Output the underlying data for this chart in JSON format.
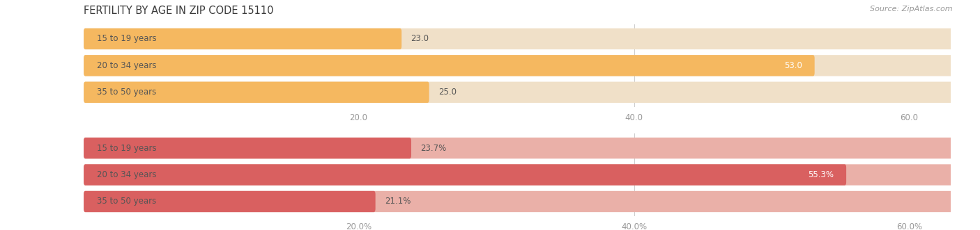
{
  "title": "FERTILITY BY AGE IN ZIP CODE 15110",
  "source": "Source: ZipAtlas.com",
  "top_chart": {
    "categories": [
      "15 to 19 years",
      "20 to 34 years",
      "35 to 50 years"
    ],
    "values": [
      23.0,
      53.0,
      25.0
    ],
    "labels": [
      "23.0",
      "53.0",
      "25.0"
    ],
    "bar_color": "#F5B860",
    "bg_bar_color": "#F0E0C8",
    "xlim": [
      0,
      63
    ],
    "xticks": [
      20.0,
      40.0,
      60.0
    ],
    "show_percent": false
  },
  "bottom_chart": {
    "categories": [
      "15 to 19 years",
      "20 to 34 years",
      "35 to 50 years"
    ],
    "values": [
      23.7,
      55.3,
      21.1
    ],
    "labels": [
      "23.7%",
      "55.3%",
      "21.1%"
    ],
    "bar_color": "#D96060",
    "bg_bar_color": "#EAB0A8",
    "xlim": [
      0,
      63
    ],
    "xticks": [
      20.0,
      40.0,
      60.0
    ],
    "show_percent": true
  },
  "bg_color": "#FFFFFF",
  "label_fontsize": 8.5,
  "title_fontsize": 10.5,
  "source_fontsize": 8,
  "title_color": "#3A3A3A",
  "tick_color": "#999999",
  "grid_color": "#CCCCCC",
  "cat_label_color": "#555555",
  "val_label_color_inside": "#FFFFFF",
  "val_label_color_outside": "#555555"
}
